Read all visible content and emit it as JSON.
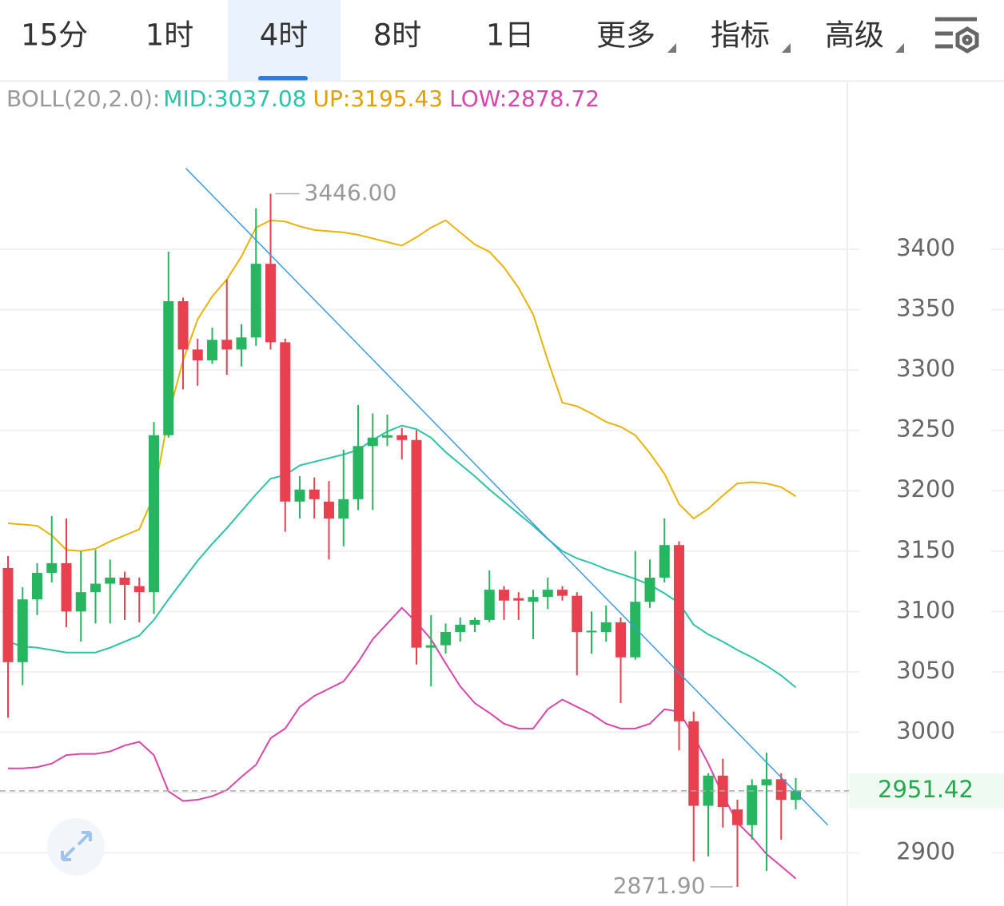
{
  "tabs": [
    "15分",
    "1时",
    "4时",
    "8时",
    "1日",
    "更多",
    "指标",
    "高级"
  ],
  "active_tab": 2,
  "chart_data": {
    "type": "candlestick",
    "indicator": {
      "name": "BOLL(20,2.0):",
      "mid": "MID:3037.08",
      "up": "UP:3195.43",
      "low": "LOW:2878.72"
    },
    "ylim": [
      2856,
      3539
    ],
    "yticks": [
      2900,
      2950,
      3000,
      3050,
      3100,
      3150,
      3200,
      3250,
      3300,
      3350,
      3400
    ],
    "grid": true,
    "up_color": "#27b560",
    "down_color": "#e8404f",
    "ohlc": [
      [
        3136,
        3146,
        3012,
        3058
      ],
      [
        3058,
        3120,
        3039,
        3110
      ],
      [
        3110,
        3140,
        3097,
        3132
      ],
      [
        3132,
        3179,
        3124,
        3140
      ],
      [
        3140,
        3177,
        3087,
        3100
      ],
      [
        3100,
        3150,
        3075,
        3116
      ],
      [
        3116,
        3151,
        3090,
        3123
      ],
      [
        3123,
        3143,
        3090,
        3128
      ],
      [
        3128,
        3133,
        3093,
        3122
      ],
      [
        3121,
        3128,
        3091,
        3116
      ],
      [
        3116,
        3257,
        3098,
        3246
      ],
      [
        3246,
        3398,
        3244,
        3357
      ],
      [
        3357,
        3360,
        3284,
        3317
      ],
      [
        3317,
        3326,
        3287,
        3308
      ],
      [
        3308,
        3335,
        3305,
        3325
      ],
      [
        3325,
        3375,
        3296,
        3317
      ],
      [
        3317,
        3338,
        3303,
        3327
      ],
      [
        3327,
        3434,
        3320,
        3388
      ],
      [
        3388,
        3446,
        3317,
        3323
      ],
      [
        3323,
        3326,
        3166,
        3191
      ],
      [
        3191,
        3212,
        3177,
        3201
      ],
      [
        3201,
        3211,
        3177,
        3193
      ],
      [
        3191,
        3208,
        3143,
        3177
      ],
      [
        3177,
        3234,
        3154,
        3193
      ],
      [
        3193,
        3271,
        3184,
        3237
      ],
      [
        3237,
        3264,
        3184,
        3244
      ],
      [
        3244,
        3263,
        3237,
        3246
      ],
      [
        3246,
        3252,
        3226,
        3242
      ],
      [
        3242,
        3250,
        3056,
        3070
      ],
      [
        3070,
        3097,
        3038,
        3072
      ],
      [
        3072,
        3090,
        3065,
        3083
      ],
      [
        3083,
        3095,
        3075,
        3089
      ],
      [
        3089,
        3095,
        3083,
        3093
      ],
      [
        3093,
        3134,
        3091,
        3118
      ],
      [
        3118,
        3121,
        3093,
        3109
      ],
      [
        3111,
        3116,
        3093,
        3109
      ],
      [
        3108,
        3118,
        3077,
        3112
      ],
      [
        3112,
        3128,
        3102,
        3118
      ],
      [
        3118,
        3121,
        3109,
        3113
      ],
      [
        3113,
        3116,
        3047,
        3083
      ],
      [
        3083,
        3100,
        3065,
        3084
      ],
      [
        3083,
        3105,
        3075,
        3091
      ],
      [
        3091,
        3095,
        3024,
        3062
      ],
      [
        3062,
        3150,
        3060,
        3108
      ],
      [
        3108,
        3143,
        3103,
        3128
      ],
      [
        3128,
        3177,
        3124,
        3155
      ],
      [
        3155,
        3158,
        2985,
        3009
      ],
      [
        3009,
        3017,
        2893,
        2939
      ],
      [
        2939,
        2966,
        2897,
        2964
      ],
      [
        2964,
        2978,
        2921,
        2938
      ],
      [
        2936,
        2944,
        2871.9,
        2923
      ],
      [
        2923,
        2961,
        2911,
        2956
      ],
      [
        2956,
        2983,
        2885,
        2961
      ],
      [
        2961,
        2966,
        2911,
        2944
      ],
      [
        2944,
        2962,
        2936,
        2951.42
      ]
    ],
    "series": [
      {
        "name": "UP",
        "color": "#eab308",
        "values": [
          3173,
          3172,
          3171,
          3163,
          3151,
          3150,
          3152,
          3158,
          3163,
          3168,
          3196,
          3262,
          3308,
          3342,
          3361,
          3375,
          3394,
          3418,
          3424,
          3423,
          3419,
          3416,
          3415,
          3414,
          3412,
          3409,
          3406,
          3403,
          3410,
          3418,
          3424,
          3414,
          3404,
          3398,
          3385,
          3368,
          3346,
          3308,
          3273,
          3270,
          3264,
          3257,
          3253,
          3246,
          3231,
          3214,
          3189,
          3177,
          3185,
          3196,
          3206,
          3207,
          3206,
          3203,
          3195.43
        ]
      },
      {
        "name": "MID",
        "color": "#2bc4a4",
        "values": [
          3075,
          3071,
          3070,
          3068,
          3066,
          3066,
          3066,
          3070,
          3075,
          3080,
          3093,
          3110,
          3126,
          3142,
          3156,
          3169,
          3183,
          3197,
          3210,
          3213,
          3221,
          3224,
          3227,
          3230,
          3234,
          3242,
          3249,
          3254,
          3251,
          3244,
          3232,
          3222,
          3212,
          3201,
          3191,
          3181,
          3171,
          3160,
          3150,
          3144,
          3140,
          3135,
          3131,
          3127,
          3122,
          3115,
          3107,
          3089,
          3081,
          3075,
          3068,
          3062,
          3055,
          3047,
          3037.08
        ]
      },
      {
        "name": "LOW",
        "color": "#d946a8",
        "values": [
          2970,
          2970,
          2971,
          2974,
          2981,
          2982,
          2982,
          2984,
          2989,
          2992,
          2981,
          2951,
          2943,
          2944,
          2947,
          2952,
          2963,
          2973,
          2995,
          3003,
          3021,
          3030,
          3036,
          3042,
          3058,
          3077,
          3090,
          3103,
          3091,
          3077,
          3057,
          3038,
          3024,
          3016,
          3007,
          3003,
          3003,
          3019,
          3027,
          3021,
          3015,
          3007,
          3003,
          3003,
          3007,
          3019,
          3017,
          2997,
          2974,
          2948,
          2925,
          2913,
          2899,
          2889,
          2878.72
        ]
      }
    ],
    "trend_line": {
      "color": "#3b9be0",
      "from": [
        12.2,
        3467
      ],
      "to": [
        56.2,
        2923
      ]
    },
    "max_label": {
      "value": 3446,
      "label": "3446.00"
    },
    "min_label": {
      "value": 2871.9,
      "label": "2871.90"
    },
    "last_price": 2951.42
  }
}
